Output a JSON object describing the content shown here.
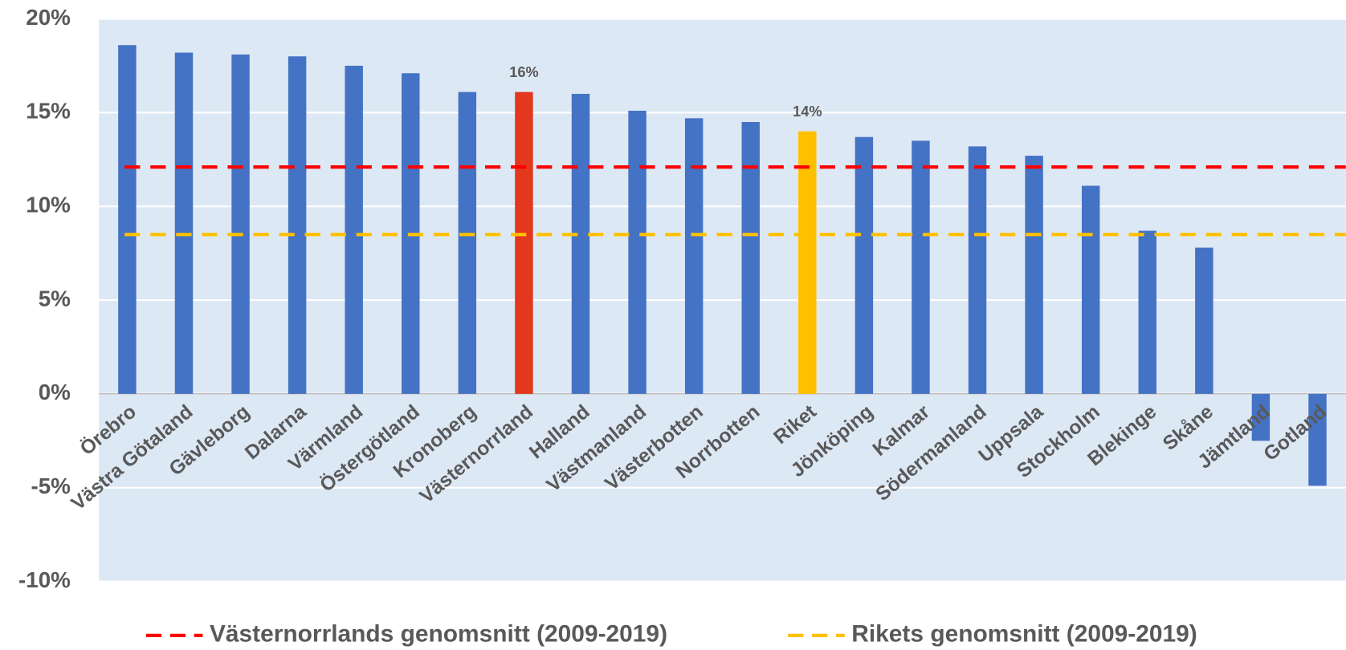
{
  "chart_data": {
    "type": "bar",
    "categories": [
      "Örebro",
      "Västra Götaland",
      "Gävleborg",
      "Dalarna",
      "Värmland",
      "Östergötland",
      "Kronoberg",
      "Västernorrland",
      "Halland",
      "Västmanland",
      "Västerbotten",
      "Norrbotten",
      "Riket",
      "Jönköping",
      "Kalmar",
      "Södermanland",
      "Uppsala",
      "Stockholm",
      "Blekinge",
      "Skåne",
      "Jämtland",
      "Gotland"
    ],
    "values": [
      18.6,
      18.2,
      18.1,
      18.0,
      17.5,
      17.1,
      16.1,
      16.1,
      16.0,
      15.1,
      14.7,
      14.5,
      14.0,
      13.7,
      13.5,
      13.2,
      12.7,
      11.1,
      8.7,
      7.8,
      -2.5,
      -4.9
    ],
    "value_labels": [
      null,
      null,
      null,
      null,
      null,
      null,
      null,
      "16%",
      null,
      null,
      null,
      null,
      "14%",
      null,
      null,
      null,
      null,
      null,
      null,
      null,
      null,
      null
    ],
    "colors": [
      "#4472c4",
      "#4472c4",
      "#4472c4",
      "#4472c4",
      "#4472c4",
      "#4472c4",
      "#4472c4",
      "#e3371e",
      "#4472c4",
      "#4472c4",
      "#4472c4",
      "#4472c4",
      "#ffc000",
      "#4472c4",
      "#4472c4",
      "#4472c4",
      "#4472c4",
      "#4472c4",
      "#4472c4",
      "#4472c4",
      "#4472c4",
      "#4472c4"
    ],
    "reference_lines": [
      {
        "name": "Västernorrlands genomsnitt (2009-2019)",
        "value": 12.1,
        "color": "#ff0000"
      },
      {
        "name": "Rikets genomsnitt (2009-2019)",
        "value": 8.5,
        "color": "#ffc000"
      }
    ],
    "ylim": [
      -10,
      20
    ],
    "yticks": [
      {
        "value": -10,
        "label": "-10%"
      },
      {
        "value": -5,
        "label": "-5%"
      },
      {
        "value": 0,
        "label": "0%"
      },
      {
        "value": 5,
        "label": "5%"
      },
      {
        "value": 10,
        "label": "10%"
      },
      {
        "value": 15,
        "label": "15%"
      },
      {
        "value": 20,
        "label": "20%"
      }
    ],
    "grid": true
  }
}
